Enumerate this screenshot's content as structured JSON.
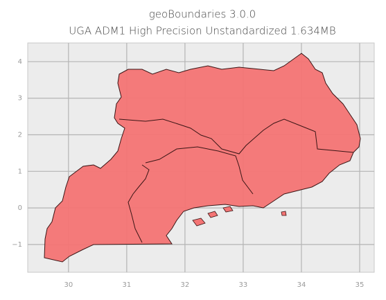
{
  "chart_data": {
    "type": "map",
    "title": "geoBoundaries 3.0.0",
    "subtitle": "UGA ADM1 High Precision Unstandardized 1.634MB",
    "xlim": [
      29.3,
      35.25
    ],
    "ylim": [
      -1.76,
      4.51
    ],
    "xticks": [
      30,
      31,
      32,
      33,
      34,
      35
    ],
    "yticks": [
      {
        "value": -1,
        "label": "−1"
      },
      0,
      1,
      2,
      3,
      4
    ],
    "grid": true,
    "color": "#f47474"
  }
}
